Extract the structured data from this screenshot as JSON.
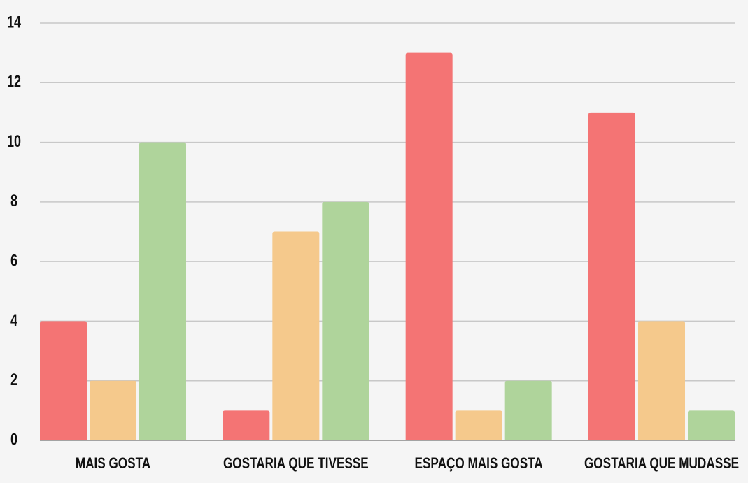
{
  "chart_data": {
    "type": "bar",
    "categories": [
      "MAIS GOSTA",
      "GOSTARIA QUE TIVESSE",
      "ESPAÇO MAIS GOSTA",
      "GOSTARIA QUE MUDASSE"
    ],
    "series": [
      {
        "color": "#f47474",
        "values": [
          4,
          1,
          13,
          11
        ]
      },
      {
        "color": "#f5c98c",
        "values": [
          2,
          7,
          1,
          4
        ]
      },
      {
        "color": "#afd49b",
        "values": [
          10,
          8,
          2,
          1
        ]
      }
    ],
    "ylim": [
      0,
      14
    ],
    "yticks": [
      0,
      2,
      4,
      6,
      8,
      10,
      12,
      14
    ],
    "grid": true
  }
}
